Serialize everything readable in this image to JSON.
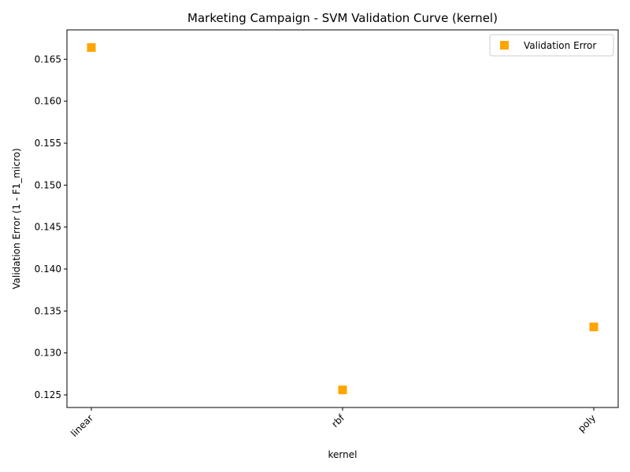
{
  "chart_data": {
    "type": "scatter",
    "title": "Marketing Campaign - SVM Validation Curve (kernel)",
    "xlabel": "kernel",
    "ylabel": "Validation Error (1 - F1_micro)",
    "categories": [
      "linear",
      "rbf",
      "poly"
    ],
    "series": [
      {
        "name": "Validation Error",
        "values": [
          0.1664,
          0.1256,
          0.1331
        ],
        "color": "#FFA500",
        "marker": "square"
      }
    ],
    "ylim": [
      0.1235,
      0.1685
    ],
    "yticks": [
      0.125,
      0.13,
      0.135,
      0.14,
      0.145,
      0.15,
      0.155,
      0.16,
      0.165
    ],
    "ytick_labels": [
      "0.125",
      "0.130",
      "0.135",
      "0.140",
      "0.145",
      "0.150",
      "0.155",
      "0.160",
      "0.165"
    ],
    "grid": false,
    "legend": "top-right"
  }
}
